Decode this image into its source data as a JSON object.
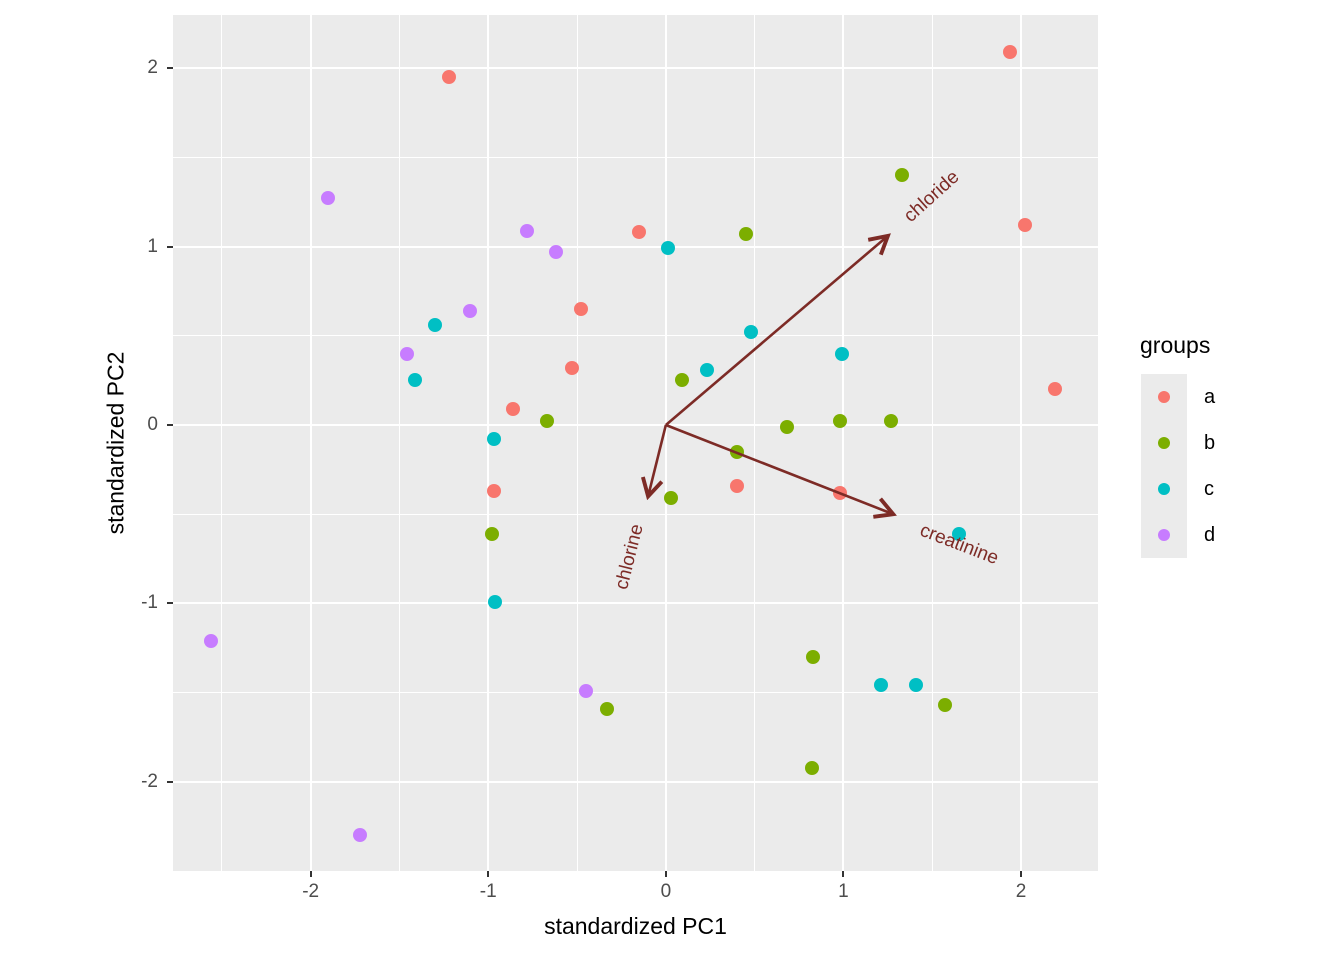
{
  "axes": {
    "x": {
      "title": "standardized PC1",
      "ticks": [
        -2,
        -1,
        0,
        1,
        2
      ],
      "minor_ticks": [
        -2.5,
        -1.5,
        -0.5,
        0.5,
        1.5
      ]
    },
    "y": {
      "title": "standardized PC2",
      "ticks": [
        2,
        1,
        0,
        -1,
        -2
      ],
      "minor_ticks": [
        1.5,
        0.5,
        -0.5,
        -1.5
      ]
    }
  },
  "legend": {
    "title": "groups",
    "items": [
      {
        "label": "a",
        "color": "#F8766D"
      },
      {
        "label": "b",
        "color": "#7CAE00"
      },
      {
        "label": "c",
        "color": "#00BFC4"
      },
      {
        "label": "d",
        "color": "#C77CFF"
      }
    ]
  },
  "theme": {
    "panel_background": "#EBEBEB",
    "grid_color": "#FFFFFF",
    "tick_color": "#333333",
    "tick_label_color": "#4D4D4D",
    "axis_title_color": "#000000",
    "arrow_color": "#7D2B26"
  },
  "chart_data": {
    "type": "scatter",
    "title": "",
    "xlabel": "standardized PC1",
    "ylabel": "standardized PC2",
    "xlim": [
      -2.775,
      2.433
    ],
    "ylim": [
      -2.5,
      2.298
    ],
    "grid": true,
    "legend_position": "right",
    "series": [
      {
        "name": "a",
        "color": "#F8766D",
        "points": [
          [
            -1.22,
            1.95
          ],
          [
            1.94,
            2.09
          ],
          [
            2.02,
            1.12
          ],
          [
            2.19,
            0.2
          ],
          [
            -0.15,
            1.08
          ],
          [
            -0.48,
            0.65
          ],
          [
            -0.53,
            0.32
          ],
          [
            -0.86,
            0.09
          ],
          [
            -0.97,
            -0.37
          ],
          [
            0.4,
            -0.34
          ],
          [
            0.98,
            -0.38
          ]
        ]
      },
      {
        "name": "b",
        "color": "#7CAE00",
        "points": [
          [
            1.33,
            1.4
          ],
          [
            0.45,
            1.07
          ],
          [
            -0.67,
            0.02
          ],
          [
            0.09,
            0.25
          ],
          [
            0.68,
            -0.01
          ],
          [
            0.98,
            0.02
          ],
          [
            1.27,
            0.02
          ],
          [
            0.4,
            -0.15
          ],
          [
            0.03,
            -0.41
          ],
          [
            -0.98,
            -0.61
          ],
          [
            -0.33,
            -1.59
          ],
          [
            0.83,
            -1.3
          ],
          [
            1.57,
            -1.57
          ],
          [
            0.82,
            -1.92
          ]
        ]
      },
      {
        "name": "c",
        "color": "#00BFC4",
        "points": [
          [
            0.01,
            0.99
          ],
          [
            -1.3,
            0.56
          ],
          [
            -1.41,
            0.25
          ],
          [
            0.48,
            0.52
          ],
          [
            0.99,
            0.4
          ],
          [
            0.23,
            0.31
          ],
          [
            -0.97,
            -0.08
          ],
          [
            -0.96,
            -0.99
          ],
          [
            1.65,
            -0.61
          ],
          [
            1.21,
            -1.46
          ],
          [
            1.41,
            -1.46
          ]
        ]
      },
      {
        "name": "d",
        "color": "#C77CFF",
        "points": [
          [
            -1.9,
            1.27
          ],
          [
            -0.78,
            1.09
          ],
          [
            -0.62,
            0.97
          ],
          [
            -1.1,
            0.64
          ],
          [
            -1.46,
            0.4
          ],
          [
            -2.56,
            -1.21
          ],
          [
            -0.45,
            -1.49
          ],
          [
            -1.72,
            -2.3
          ]
        ]
      }
    ],
    "biplot_vectors": [
      {
        "label": "chloride",
        "x": 1.25,
        "y": 1.06,
        "label_x": 1.5,
        "label_y": 1.28,
        "label_rotation": -42
      },
      {
        "label": "creatinine",
        "x": 1.28,
        "y": -0.5,
        "label_x": 1.65,
        "label_y": -0.67,
        "label_rotation": 21
      },
      {
        "label": "chlorine",
        "x": -0.1,
        "y": -0.4,
        "label_x": -0.2,
        "label_y": -0.74,
        "label_rotation": -76
      }
    ],
    "vector_origin": [
      0,
      0
    ]
  }
}
